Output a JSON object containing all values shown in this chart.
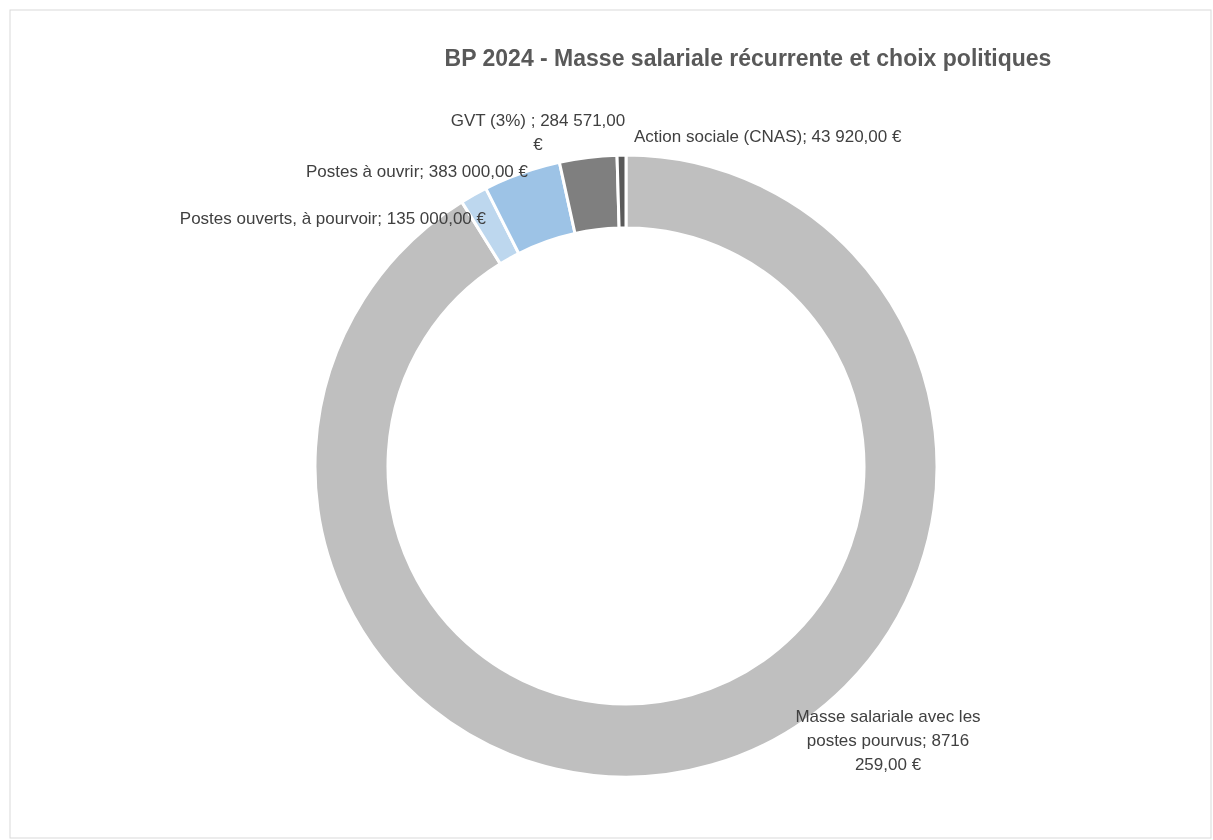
{
  "chart_data": {
    "type": "donut",
    "title": "BP 2024 - Masse salariale récurrente et choix politiques",
    "categories": [
      "Masse salariale avec les postes pourvus",
      "Postes ouverts, à pourvoir",
      "Postes à ouvrir",
      "GVT (3%)",
      "Action sociale (CNAS)"
    ],
    "values": [
      8716259,
      135000,
      383000,
      284571,
      43920
    ],
    "value_labels": [
      "8716 259,00 €",
      "135 000,00 €",
      "383 000,00 €",
      "284 571,00 €",
      "43 920,00 €"
    ],
    "colors": [
      "#bfbfbf",
      "#bdd7ee",
      "#9dc3e6",
      "#7f7f7f",
      "#595959"
    ],
    "legend": false
  }
}
